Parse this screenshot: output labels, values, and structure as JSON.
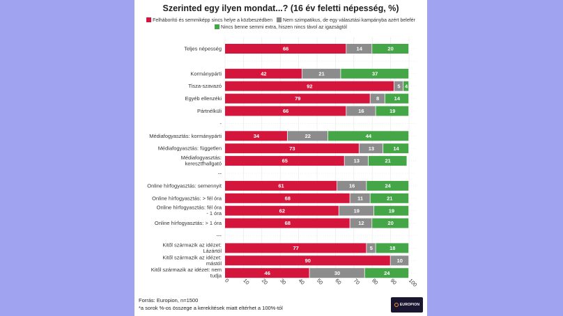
{
  "chart_data": {
    "type": "bar",
    "orientation": "horizontal",
    "stacked": true,
    "title": "Szerinted egy ilyen mondat...? (16 év feletti népesség, %)",
    "legend": [
      {
        "name": "Felháborító és semmiképp sincs helye a közbeszédben",
        "color": "#d5163c"
      },
      {
        "name": "Nem szimpatikus, de egy választási kampányba azért belefér",
        "color": "#8c8c8c"
      },
      {
        "name": "Nincs benne semmi extra, hiszen nincs távol az igazságtól",
        "color": "#44a647"
      }
    ],
    "xlim": [
      0,
      100
    ],
    "xticks": [
      "0",
      "10",
      "20",
      "30",
      "40",
      "50",
      "60",
      "70",
      "80",
      "90",
      "100"
    ],
    "rows": [
      {
        "label": "Teljes népesség",
        "values": [
          66,
          14,
          20
        ],
        "labels": [
          "66",
          "14",
          "20"
        ]
      },
      {
        "label": "",
        "values": null
      },
      {
        "label": "Kormánypárti",
        "values": [
          42,
          21,
          37
        ],
        "labels": [
          "42",
          "21",
          "37"
        ]
      },
      {
        "label": "Tisza-szavazó",
        "values": [
          92,
          5,
          4
        ],
        "labels": [
          "92",
          "5",
          "4"
        ]
      },
      {
        "label": "Egyéb ellenzéki",
        "values": [
          79,
          8,
          14
        ],
        "labels": [
          "79",
          "8",
          "14"
        ]
      },
      {
        "label": "Pártnélküli",
        "values": [
          66,
          16,
          19
        ],
        "labels": [
          "66",
          "16",
          "19"
        ]
      },
      {
        "label": "-",
        "values": null
      },
      {
        "label": "Médiafogyasztás: kormánypárti",
        "values": [
          34,
          22,
          44
        ],
        "labels": [
          "34",
          "22",
          "44"
        ]
      },
      {
        "label": "Médiafogyasztás: független",
        "values": [
          73,
          13,
          14
        ],
        "labels": [
          "73",
          "13",
          "14"
        ]
      },
      {
        "label": "Médiafogyasztás: keresztfhallgató",
        "values": [
          65,
          13,
          21
        ],
        "labels": [
          "65",
          "13",
          "21"
        ]
      },
      {
        "label": "--",
        "values": null
      },
      {
        "label": "Online hírfogyasztás: semennyit",
        "values": [
          61,
          16,
          24
        ],
        "labels": [
          "61",
          "16",
          "24"
        ]
      },
      {
        "label": "Online hírfogyasztás: > fél óra",
        "values": [
          68,
          11,
          21
        ],
        "labels": [
          "68",
          "11",
          "21"
        ]
      },
      {
        "label": "Online hírfogyasztás: fél óra - 1 óra",
        "values": [
          62,
          19,
          19
        ],
        "labels": [
          "62",
          "19",
          "19"
        ]
      },
      {
        "label": "Online hírfogyasztás: > 1 óra",
        "values": [
          68,
          12,
          20
        ],
        "labels": [
          "68",
          "12",
          "20"
        ]
      },
      {
        "label": "---",
        "values": null
      },
      {
        "label": "Kitől származik az idézet: Lázártól",
        "values": [
          77,
          5,
          18
        ],
        "labels": [
          "77",
          "5",
          "18"
        ]
      },
      {
        "label": "Kitől származik az idézet: mástól",
        "values": [
          90,
          10,
          0
        ],
        "labels": [
          "90",
          "10",
          ""
        ]
      },
      {
        "label": "Kitől származik az idézet: nem tudja",
        "values": [
          46,
          30,
          24
        ],
        "labels": [
          "46",
          "30",
          "24"
        ]
      }
    ]
  },
  "footer": {
    "source": "Forrás: Europion, n=1500",
    "note": "*a sorok %-os összege a kerekítések miatt eltérhet a 100%-tól",
    "logo_text": "EUROPION"
  }
}
